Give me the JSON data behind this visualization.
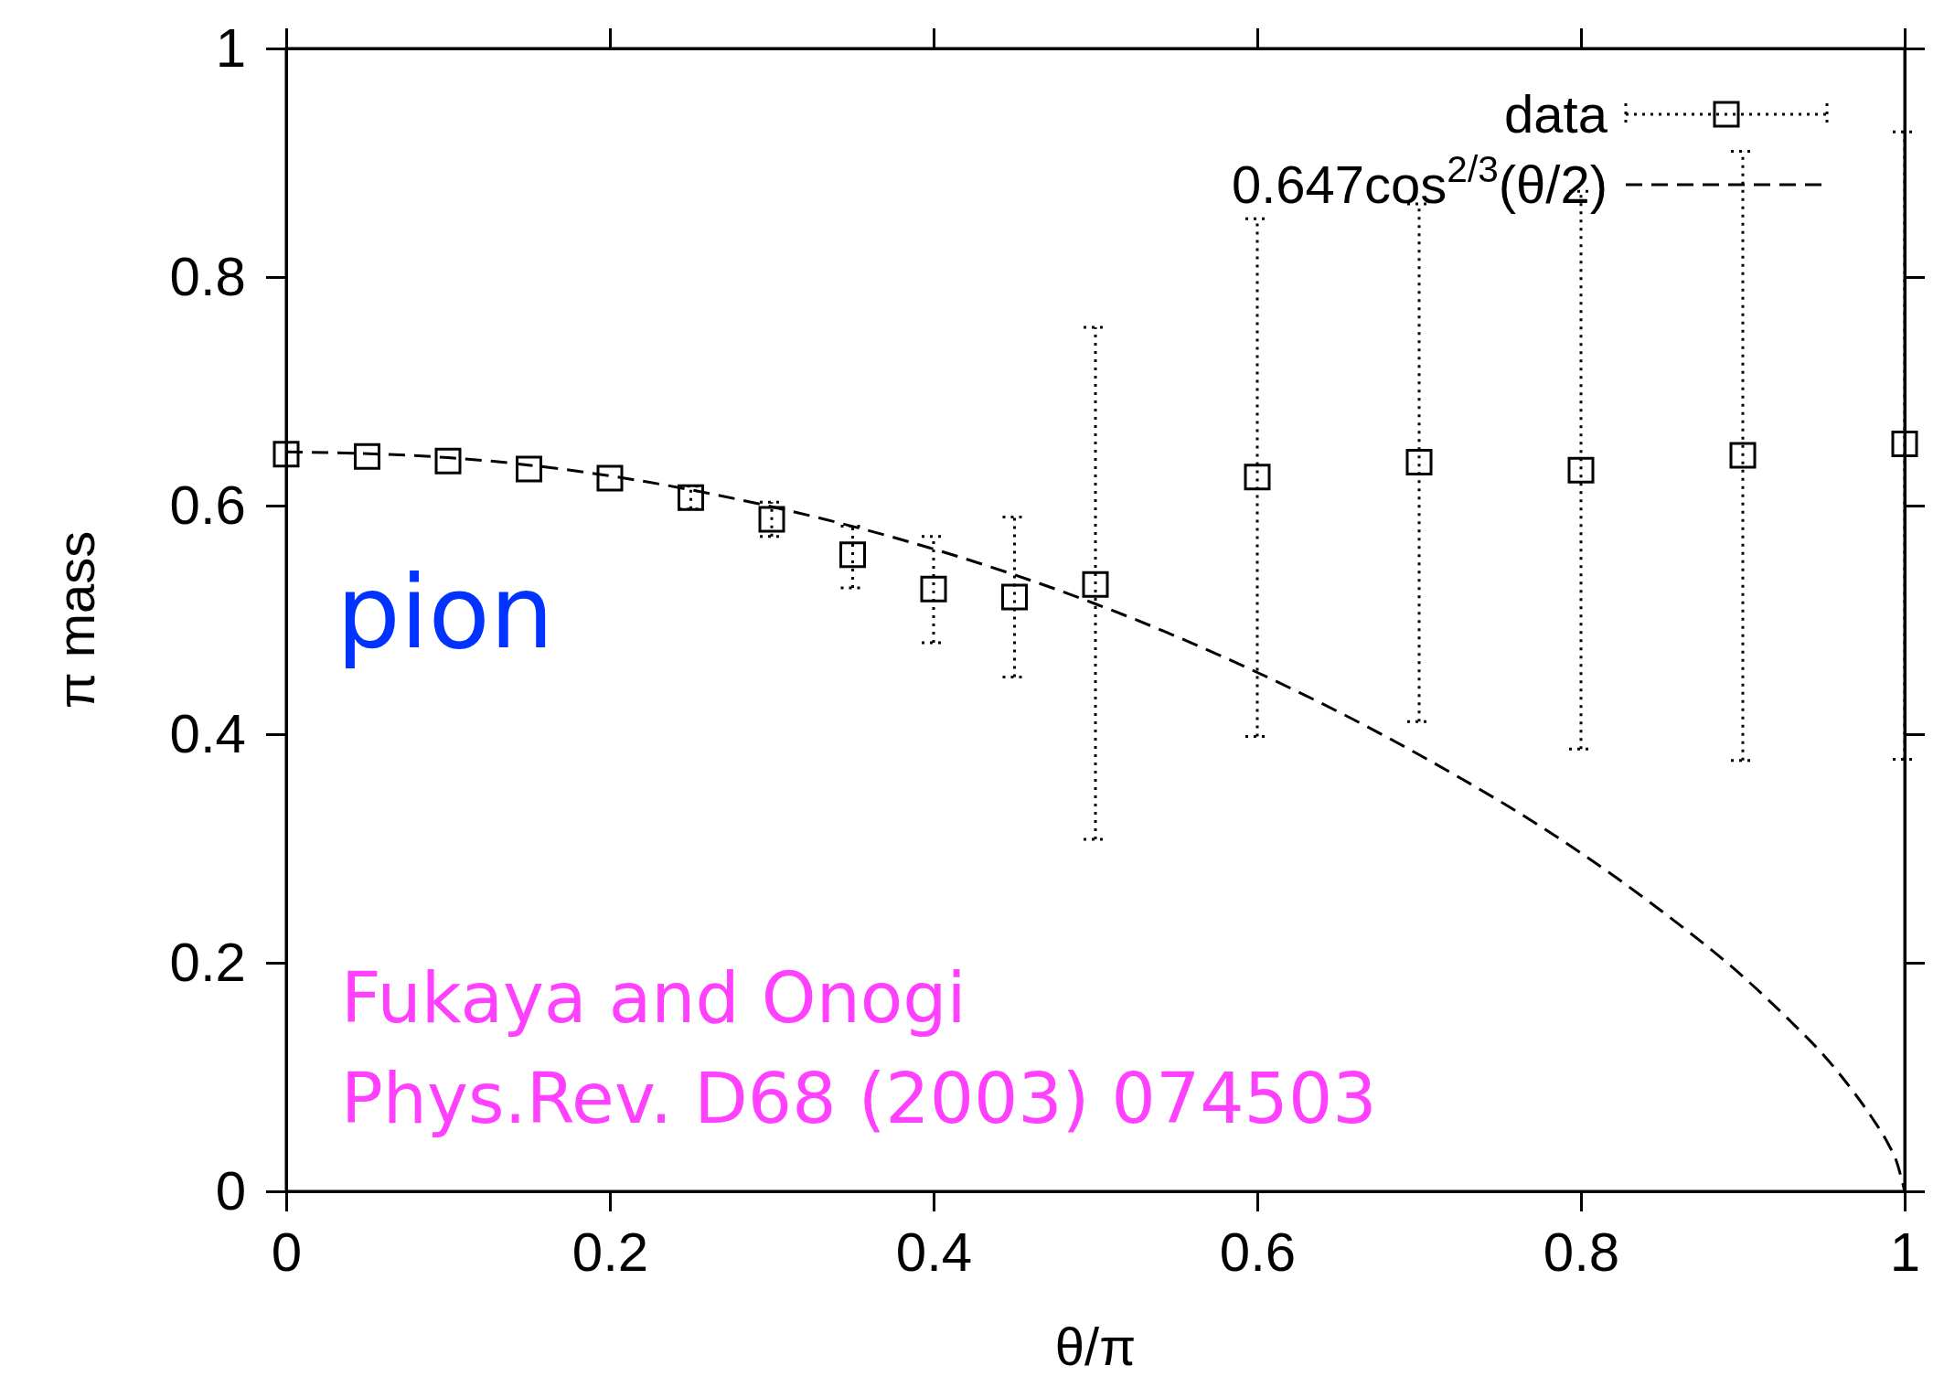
{
  "chart_data": {
    "type": "scatter",
    "xlabel": "θ/π",
    "ylabel": "π mass",
    "xlim": [
      0,
      1
    ],
    "ylim": [
      0,
      1
    ],
    "xticks": [
      0,
      0.2,
      0.4,
      0.6,
      0.8,
      1
    ],
    "yticks": [
      0,
      0.2,
      0.4,
      0.6,
      0.8,
      1
    ],
    "grid": false,
    "legend": "top right",
    "annotations": [
      "pion",
      "Fukaya and Onogi",
      "Phys.Rev. D68 (2003) 074503"
    ],
    "series": [
      {
        "name": "data",
        "type": "scatter",
        "color": "#000000",
        "marker": "square",
        "x": [
          0,
          0.05,
          0.1,
          0.15,
          0.2,
          0.25,
          0.3,
          0.35,
          0.4,
          0.45,
          0.5,
          0.6,
          0.7,
          0.8,
          0.9,
          1.0
        ],
        "values": [
          0.645,
          0.643,
          0.639,
          0.632,
          0.624,
          0.607,
          0.588,
          0.557,
          0.527,
          0.52,
          0.531,
          0.625,
          0.638,
          0.631,
          0.644,
          0.654
        ],
        "errors": [
          null,
          null,
          null,
          null,
          null,
          0.01,
          0.015,
          [
            0.528,
            0.582
          ],
          [
            0.48,
            0.573
          ],
          [
            0.45,
            0.59
          ],
          [
            0.308,
            0.756
          ],
          [
            0.398,
            0.851
          ],
          [
            0.411,
            0.864
          ],
          [
            0.387,
            0.875
          ],
          [
            0.377,
            0.91
          ],
          [
            0.378,
            0.927
          ]
        ]
      },
      {
        "name": "0.647cos$^{2/3}$(θ/2)",
        "type": "line",
        "color": "#000000",
        "marker": "none",
        "line_style": "dashed",
        "x": [
          0,
          0.1,
          0.2,
          0.3,
          0.4,
          0.5,
          0.6,
          0.7,
          0.8,
          0.85,
          0.9,
          0.93,
          0.95,
          0.97,
          0.98,
          0.99,
          0.995,
          1.0
        ],
        "values": [
          0.647,
          0.642,
          0.626,
          0.599,
          0.562,
          0.514,
          0.454,
          0.382,
          0.296,
          0.245,
          0.188,
          0.148,
          0.119,
          0.084,
          0.064,
          0.041,
          0.026,
          0
        ]
      }
    ]
  }
}
